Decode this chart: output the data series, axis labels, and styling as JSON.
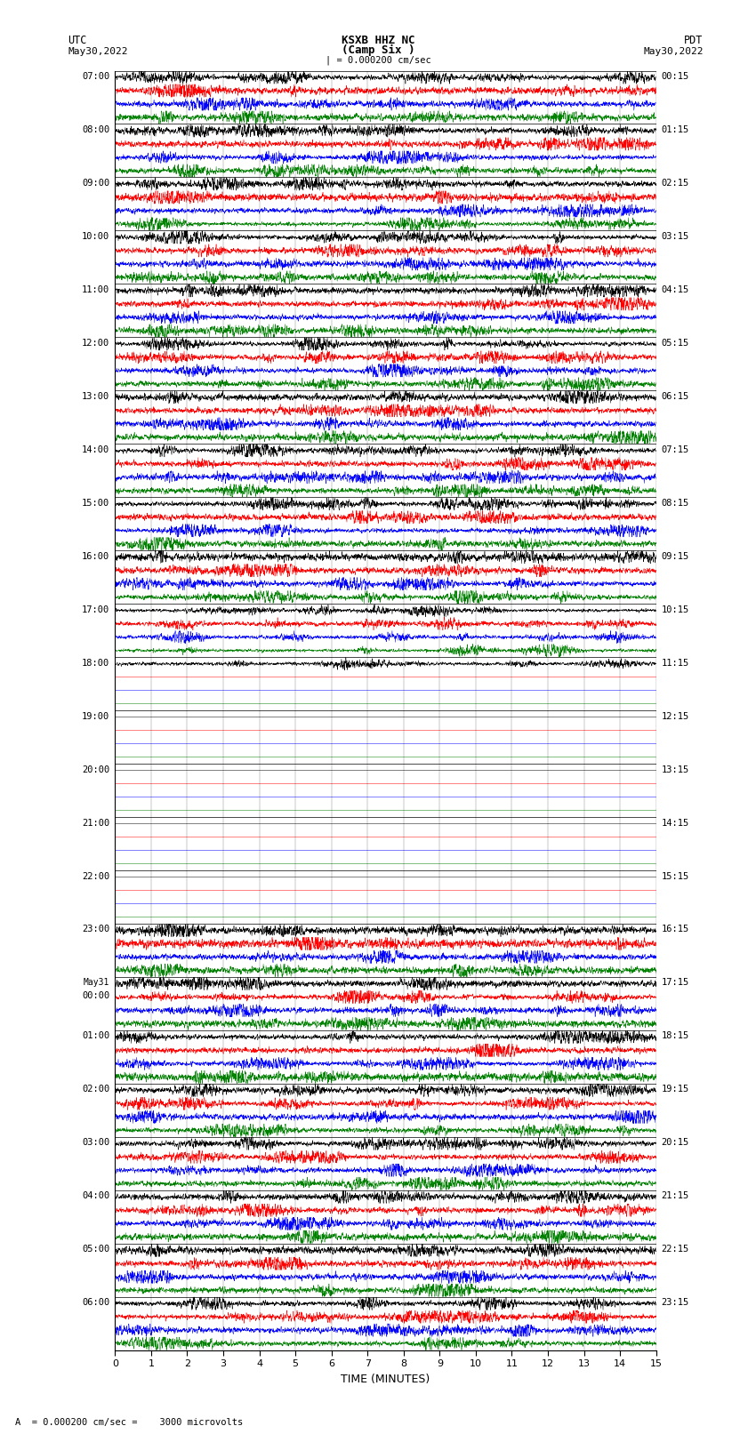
{
  "title_line1": "KSXB HHZ NC",
  "title_line2": "(Camp Six )",
  "label_left_top": "UTC",
  "label_left_date": "May30,2022",
  "label_right_top": "PDT",
  "label_right_date": "May30,2022",
  "calib_text": "| = 0.000200 cm/sec",
  "xlabel": "TIME (MINUTES)",
  "bottom_note": "A  = 0.000200 cm/sec =    3000 microvolts",
  "xmin": 0,
  "xmax": 15,
  "xticks": [
    0,
    1,
    2,
    3,
    4,
    5,
    6,
    7,
    8,
    9,
    10,
    11,
    12,
    13,
    14,
    15
  ],
  "fig_width": 8.5,
  "fig_height": 16.13,
  "bg_color": "#ffffff",
  "trace_colors": [
    "black",
    "red",
    "blue",
    "green"
  ],
  "n_rows": 24,
  "traces_per_row": 4,
  "row_labels_utc": [
    "07:00",
    "08:00",
    "09:00",
    "10:00",
    "11:00",
    "12:00",
    "13:00",
    "14:00",
    "15:00",
    "16:00",
    "17:00",
    "18:00",
    "19:00",
    "20:00",
    "21:00",
    "22:00",
    "23:00",
    "May31\n00:00",
    "01:00",
    "02:00",
    "03:00",
    "04:00",
    "05:00",
    "06:00"
  ],
  "row_labels_pdt": [
    "00:15",
    "01:15",
    "02:15",
    "03:15",
    "04:15",
    "05:15",
    "06:15",
    "07:15",
    "08:15",
    "09:15",
    "10:15",
    "11:15",
    "12:15",
    "13:15",
    "14:15",
    "15:15",
    "16:15",
    "17:15",
    "18:15",
    "19:15",
    "20:15",
    "21:15",
    "22:15",
    "23:15"
  ],
  "quiet_rows": [
    11,
    12,
    13,
    14,
    15
  ],
  "partial_quiet_rows": [
    10
  ],
  "noise_seed": 42
}
